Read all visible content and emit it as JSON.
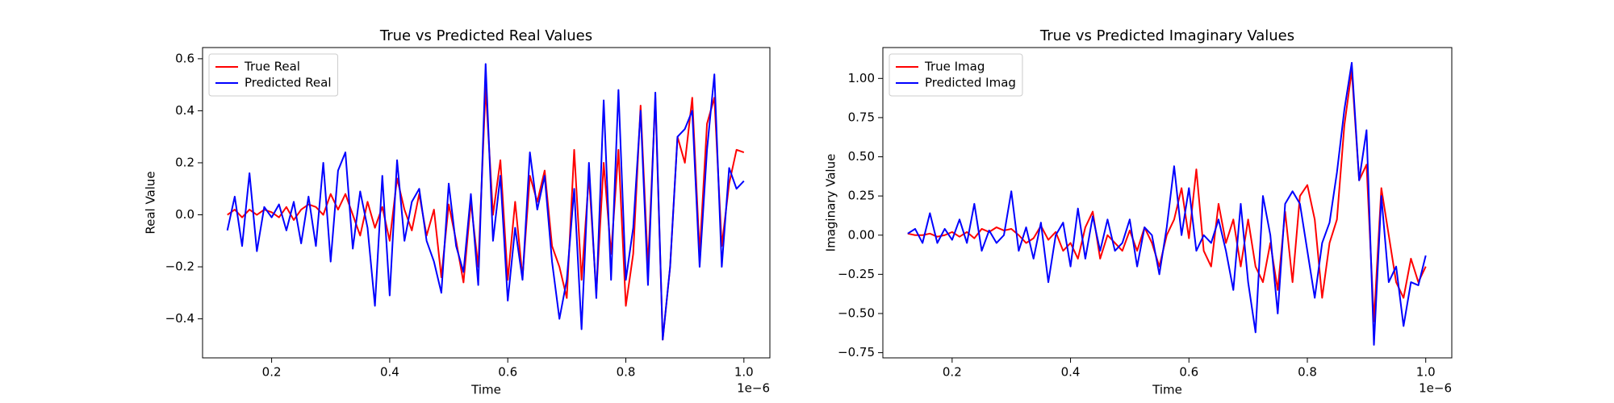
{
  "chart_data": [
    {
      "type": "line",
      "title": "True vs Predicted Real Values",
      "xlabel": "Time",
      "ylabel": "Real Value",
      "x_offset": "1e−6",
      "x": [
        0.125,
        0.1375,
        0.15,
        0.1625,
        0.175,
        0.1875,
        0.2,
        0.2125,
        0.225,
        0.2375,
        0.25,
        0.2625,
        0.275,
        0.2875,
        0.3,
        0.3125,
        0.325,
        0.3375,
        0.35,
        0.3625,
        0.375,
        0.3875,
        0.4,
        0.4125,
        0.425,
        0.4375,
        0.45,
        0.4625,
        0.475,
        0.4875,
        0.5,
        0.5125,
        0.525,
        0.5375,
        0.55,
        0.5625,
        0.575,
        0.5875,
        0.6,
        0.6125,
        0.625,
        0.6375,
        0.65,
        0.6625,
        0.675,
        0.6875,
        0.7,
        0.7125,
        0.725,
        0.7375,
        0.75,
        0.7625,
        0.775,
        0.7875,
        0.8,
        0.8125,
        0.825,
        0.8375,
        0.85,
        0.8625,
        0.875,
        0.8875,
        0.9,
        0.9125,
        0.925,
        0.9375,
        0.95,
        0.9625,
        0.975,
        0.9875,
        1.0
      ],
      "series": [
        {
          "name": "True Real",
          "color": "#ff0000",
          "values": [
            0,
            0.02,
            -0.01,
            0.02,
            0,
            0.02,
            0.01,
            -0.01,
            0.03,
            -0.02,
            0.02,
            0.04,
            0.03,
            0,
            0.08,
            0.02,
            0.08,
            0,
            -0.08,
            0.05,
            -0.05,
            0.03,
            -0.1,
            0.14,
            0.02,
            -0.06,
            0.08,
            -0.08,
            0.02,
            -0.24,
            0.04,
            -0.1,
            -0.26,
            0.05,
            -0.2,
            0.49,
            0,
            0.21,
            -0.25,
            0.05,
            -0.24,
            0.15,
            0.05,
            0.17,
            -0.12,
            -0.2,
            -0.32,
            0.25,
            -0.25,
            0.15,
            -0.3,
            0.2,
            -0.15,
            0.25,
            -0.35,
            -0.15,
            0.42,
            -0.2,
            0.45,
            -0.48,
            -0.2,
            0.3,
            0.2,
            0.45,
            -0.15,
            0.35,
            0.45,
            -0.12,
            0.12,
            0.25,
            0.24
          ]
        },
        {
          "name": "Predicted Real",
          "color": "#0000ff",
          "values": [
            -0.06,
            0.07,
            -0.12,
            0.16,
            -0.14,
            0.03,
            -0.01,
            0.04,
            -0.06,
            0.05,
            -0.11,
            0.07,
            -0.12,
            0.2,
            -0.18,
            0.17,
            0.24,
            -0.13,
            0.09,
            -0.05,
            -0.35,
            0.15,
            -0.31,
            0.21,
            -0.1,
            0.05,
            0.1,
            -0.1,
            -0.18,
            -0.3,
            0.12,
            -0.12,
            -0.22,
            0.08,
            -0.27,
            0.58,
            -0.1,
            0.15,
            -0.33,
            -0.05,
            -0.25,
            0.24,
            0.02,
            0.15,
            -0.18,
            -0.4,
            -0.25,
            0.1,
            -0.44,
            0.2,
            -0.32,
            0.44,
            -0.25,
            0.48,
            -0.25,
            -0.05,
            0.4,
            -0.27,
            0.47,
            -0.48,
            -0.2,
            0.3,
            0.33,
            0.4,
            -0.2,
            0.25,
            0.54,
            -0.2,
            0.18,
            0.1,
            0.13
          ]
        }
      ],
      "xlim": [
        0.083,
        1.044
      ],
      "ylim": [
        -0.55,
        0.643
      ],
      "xticks": [
        0.2,
        0.4,
        0.6,
        0.8,
        {
          "value": 1,
          "label": "1.0"
        }
      ],
      "yticks": [
        {
          "value": -0.4,
          "label": "−0.4"
        },
        {
          "value": -0.2,
          "label": "−0.2"
        },
        {
          "value": 0,
          "label": "0.0"
        },
        0.2,
        0.4,
        0.6
      ],
      "legend": "upper left"
    },
    {
      "type": "line",
      "title": "True vs Predicted Imaginary Values",
      "xlabel": "Time",
      "ylabel": "Imaginary Value",
      "x_offset": "1e−6",
      "x": [
        0.125,
        0.1375,
        0.15,
        0.1625,
        0.175,
        0.1875,
        0.2,
        0.2125,
        0.225,
        0.2375,
        0.25,
        0.2625,
        0.275,
        0.2875,
        0.3,
        0.3125,
        0.325,
        0.3375,
        0.35,
        0.3625,
        0.375,
        0.3875,
        0.4,
        0.4125,
        0.425,
        0.4375,
        0.45,
        0.4625,
        0.475,
        0.4875,
        0.5,
        0.5125,
        0.525,
        0.5375,
        0.55,
        0.5625,
        0.575,
        0.5875,
        0.6,
        0.6125,
        0.625,
        0.6375,
        0.65,
        0.6625,
        0.675,
        0.6875,
        0.7,
        0.7125,
        0.725,
        0.7375,
        0.75,
        0.7625,
        0.775,
        0.7875,
        0.8,
        0.8125,
        0.825,
        0.8375,
        0.85,
        0.8625,
        0.875,
        0.8875,
        0.9,
        0.9125,
        0.925,
        0.9375,
        0.95,
        0.9625,
        0.975,
        0.9875,
        1.0
      ],
      "series": [
        {
          "name": "True Imag",
          "color": "#ff0000",
          "values": [
            0.01,
            0,
            0,
            0.01,
            -0.01,
            0,
            0.02,
            -0.01,
            0.02,
            -0.02,
            0.04,
            0.02,
            0.05,
            0.03,
            0.04,
            0,
            -0.05,
            -0.02,
            0.06,
            -0.03,
            0.02,
            -0.1,
            -0.05,
            -0.15,
            0.05,
            0.15,
            -0.15,
            0,
            -0.05,
            -0.1,
            0.03,
            -0.1,
            0.05,
            -0.05,
            -0.2,
            0,
            0.1,
            0.3,
            -0.02,
            0.42,
            -0.1,
            -0.2,
            0.2,
            -0.05,
            0.1,
            -0.2,
            0.1,
            -0.2,
            -0.3,
            -0.05,
            -0.35,
            0.15,
            -0.3,
            0.25,
            0.32,
            0.1,
            -0.4,
            -0.05,
            0.1,
            0.7,
            1.05,
            0.35,
            0.45,
            -0.55,
            0.3,
            0,
            -0.3,
            -0.4,
            -0.15,
            -0.3,
            -0.2
          ]
        },
        {
          "name": "Predicted Imag",
          "color": "#0000ff",
          "values": [
            0.01,
            0.04,
            -0.05,
            0.14,
            -0.05,
            0.04,
            -0.03,
            0.1,
            -0.05,
            0.2,
            -0.1,
            0.03,
            -0.05,
            0,
            0.28,
            -0.1,
            0.05,
            -0.15,
            0.08,
            -0.3,
            0,
            0.08,
            -0.2,
            0.17,
            -0.15,
            0.12,
            -0.1,
            0.1,
            -0.1,
            -0.05,
            0.1,
            -0.2,
            0.05,
            0,
            -0.25,
            0.05,
            0.44,
            0,
            0.3,
            -0.1,
            0,
            -0.05,
            0.1,
            -0.1,
            -0.35,
            0.2,
            -0.3,
            -0.62,
            0.25,
            0,
            -0.5,
            0.2,
            0.28,
            0.2,
            -0.1,
            -0.4,
            -0.05,
            0.08,
            0.4,
            0.8,
            1.1,
            0.35,
            0.67,
            -0.7,
            0.25,
            -0.3,
            -0.2,
            -0.58,
            -0.3,
            -0.32,
            -0.13
          ]
        }
      ],
      "xlim": [
        0.083,
        1.044
      ],
      "ylim": [
        -0.783,
        1.197
      ],
      "xticks": [
        0.2,
        0.4,
        0.6,
        0.8,
        {
          "value": 1,
          "label": "1.0"
        }
      ],
      "yticks": [
        {
          "value": -0.75,
          "label": "−0.75"
        },
        {
          "value": -0.5,
          "label": "−0.50"
        },
        {
          "value": -0.25,
          "label": "−0.25"
        },
        {
          "value": 0,
          "label": "0.00"
        },
        {
          "value": 0.25,
          "label": "0.25"
        },
        {
          "value": 0.5,
          "label": "0.50"
        },
        {
          "value": 0.75,
          "label": "0.75"
        },
        {
          "value": 1,
          "label": "1.00"
        }
      ],
      "legend": "upper left"
    }
  ]
}
